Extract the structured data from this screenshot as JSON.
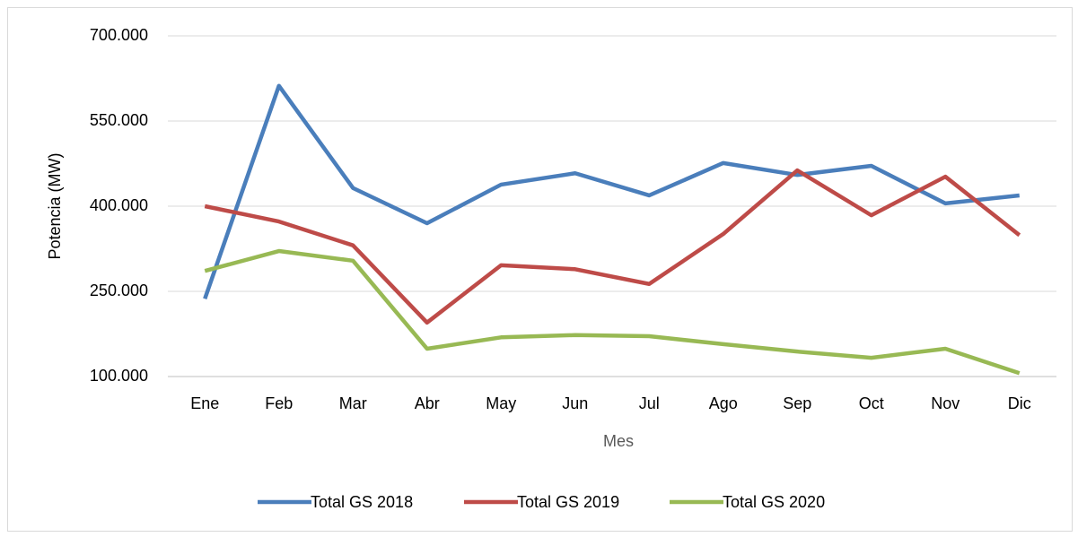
{
  "chart_data": {
    "type": "line",
    "x_label": "Mes",
    "y_label": "Potencia (MW)",
    "categories": [
      "Ene",
      "Feb",
      "Mar",
      "Abr",
      "May",
      "Jun",
      "Jul",
      "Ago",
      "Sep",
      "Oct",
      "Nov",
      "Dic"
    ],
    "series": [
      {
        "name": "Total GS 2018",
        "color": "#4a7ebb",
        "values": [
          237000,
          612000,
          432000,
          370000,
          438000,
          458000,
          419000,
          476000,
          455000,
          471000,
          405000,
          419000
        ]
      },
      {
        "name": "Total GS 2019",
        "color": "#be4b48",
        "values": [
          400000,
          373000,
          331000,
          195000,
          296000,
          289000,
          263000,
          351000,
          463000,
          384000,
          452000,
          349000
        ]
      },
      {
        "name": "Total GS 2020",
        "color": "#98b954",
        "values": [
          286000,
          321000,
          304000,
          149000,
          169000,
          173000,
          171000,
          157000,
          144000,
          133000,
          149000,
          106000
        ]
      }
    ],
    "ylim": [
      100000,
      700000
    ],
    "yticks": [
      {
        "value": 100000,
        "label": "100.000"
      },
      {
        "value": 250000,
        "label": "250.000"
      },
      {
        "value": 400000,
        "label": "400.000"
      },
      {
        "value": 550000,
        "label": "550.000"
      },
      {
        "value": 700000,
        "label": "700.000"
      }
    ],
    "grid": true,
    "legend": "bottom"
  }
}
